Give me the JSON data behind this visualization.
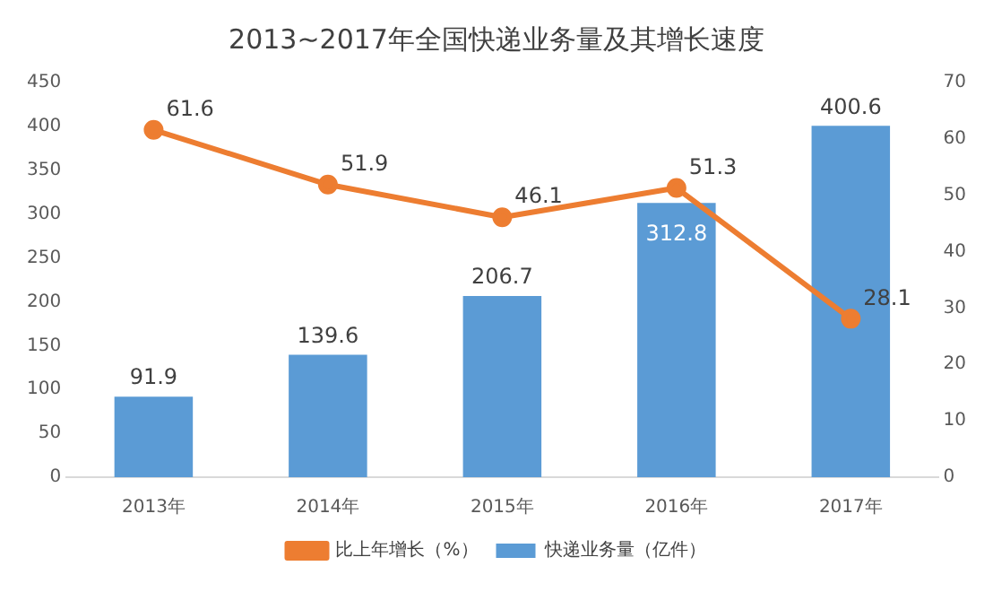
{
  "chart_data": {
    "type": "bar",
    "title": "2013~2017年全国快递业务量及其增长速度",
    "categories": [
      "2013年",
      "2014年",
      "2015年",
      "2016年",
      "2017年"
    ],
    "series": [
      {
        "name": "快递业务量（亿件）",
        "color": "#5b9bd5",
        "values": [
          91.9,
          139.6,
          206.7,
          312.8,
          400.6
        ]
      },
      {
        "name": "比上年增长（%）",
        "type": "line",
        "axis": "y2",
        "color": "#ed7d31",
        "marker": "circle",
        "values": [
          61.6,
          51.9,
          46.1,
          51.3,
          28.1
        ]
      }
    ],
    "ylim": [
      0,
      450
    ],
    "yticks": [
      0,
      50,
      100,
      150,
      200,
      250,
      300,
      350,
      400,
      450
    ],
    "y2lim": [
      0,
      70
    ],
    "y2ticks": [
      0,
      10,
      20,
      30,
      40,
      50,
      60,
      70
    ],
    "grid": false,
    "legend": "bottom",
    "data_labels": true
  }
}
